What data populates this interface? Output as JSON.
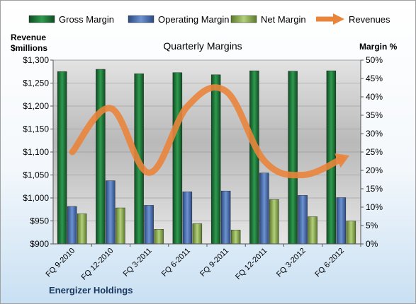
{
  "chart_data": {
    "type": "bar",
    "title": "Quarterly Margins",
    "categories": [
      "FQ 9-2010",
      "FQ 12-2010",
      "FQ 3-2011",
      "FQ 6-2011",
      "FQ 9-2011",
      "FQ 12-2011",
      "FQ 3-2012",
      "FQ 6-2012"
    ],
    "series": [
      {
        "name": "Gross Margin",
        "axis": "right",
        "values": [
          46.9,
          47.5,
          46.3,
          46.6,
          46.0,
          47.1,
          47.0,
          47.1
        ],
        "color": "#1f7a3c"
      },
      {
        "name": "Operating Margin",
        "axis": "right",
        "values": [
          10.2,
          17.2,
          10.5,
          14.2,
          14.4,
          19.3,
          13.2,
          12.6
        ],
        "color": "#4f75b8"
      },
      {
        "name": "Net Margin",
        "axis": "right",
        "values": [
          8.2,
          9.8,
          4.0,
          5.5,
          3.8,
          12.1,
          7.4,
          6.2
        ],
        "color": "#9bbb59"
      },
      {
        "name": "Revenues",
        "type": "line",
        "axis": "left",
        "values": [
          1100,
          1195,
          1055,
          1200,
          1232,
          1080,
          1050,
          1085
        ],
        "color": "#e9843b"
      }
    ],
    "left_axis": {
      "label_line1": "Revenue",
      "label_line2": "$millions",
      "min": 900,
      "max": 1300,
      "ticks": [
        "$900",
        "$950",
        "$1,000",
        "$1,050",
        "$1,100",
        "$1,150",
        "$1,200",
        "$1,250",
        "$1,300"
      ]
    },
    "right_axis": {
      "label": "Margin %",
      "min": 0,
      "max": 50,
      "ticks": [
        "0%",
        "5%",
        "10%",
        "15%",
        "20%",
        "25%",
        "30%",
        "35%",
        "40%",
        "45%",
        "50%"
      ]
    },
    "legend_position": "top",
    "grid": true,
    "footer": "Energizer Holdings"
  }
}
